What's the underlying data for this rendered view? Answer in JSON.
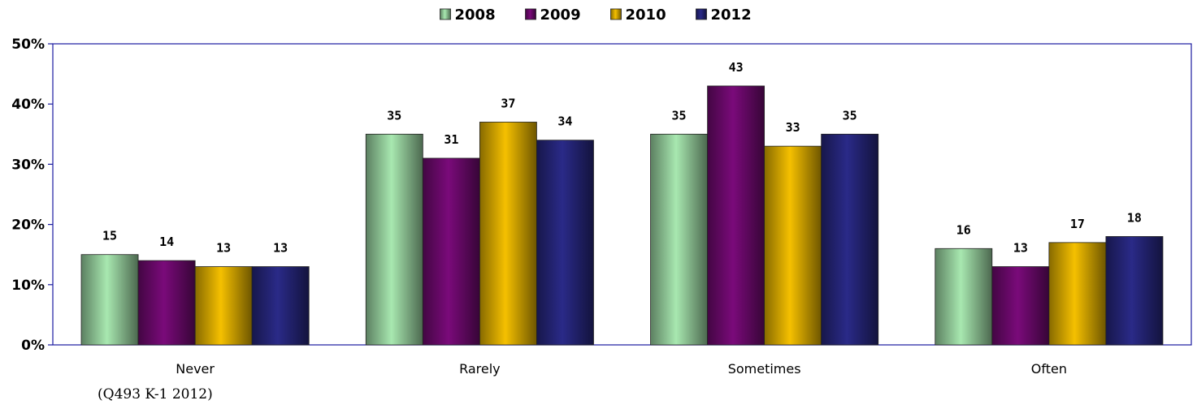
{
  "chart_data": {
    "type": "bar",
    "categories": [
      "Never",
      "Rarely",
      "Sometimes",
      "Often"
    ],
    "series": [
      {
        "name": "2008",
        "values": [
          15,
          35,
          35,
          16
        ],
        "color": "#a8e8b0"
      },
      {
        "name": "2009",
        "values": [
          14,
          31,
          43,
          13
        ],
        "color": "#7a0a7a"
      },
      {
        "name": "2010",
        "values": [
          13,
          37,
          33,
          17
        ],
        "color": "#f5c000"
      },
      {
        "name": "2012",
        "values": [
          13,
          34,
          35,
          18
        ],
        "color": "#2a2a88"
      }
    ],
    "ylim": [
      0,
      50
    ],
    "yticks": [
      "0%",
      "10%",
      "20%",
      "30%",
      "40%",
      "50%"
    ],
    "ytick_values": [
      0,
      10,
      20,
      30,
      40,
      50
    ],
    "legend_position": "top",
    "grid": false,
    "title": "",
    "xlabel": "",
    "ylabel": ""
  },
  "source_note": "(Q493 K-1 2012)"
}
